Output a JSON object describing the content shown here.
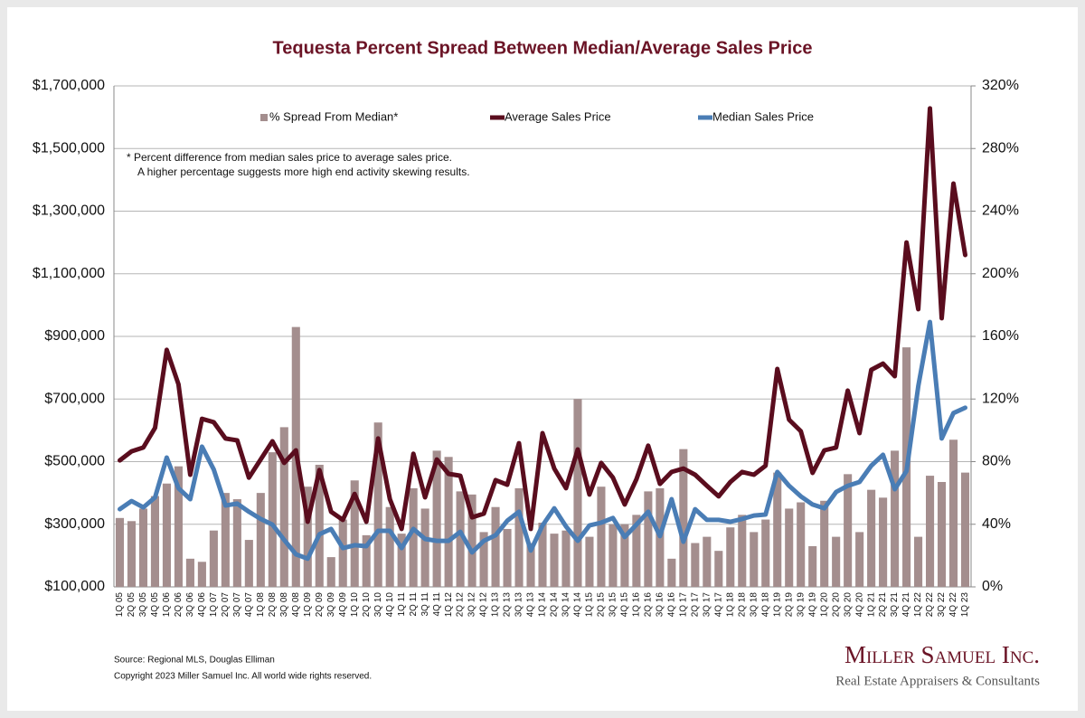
{
  "chart_data": {
    "type": "bar-line",
    "title": "Tequesta Percent Spread Between Median/Average Sales Price",
    "categories": [
      "1Q 05",
      "2Q 05",
      "3Q 05",
      "4Q 05",
      "1Q 06",
      "2Q 06",
      "3Q 06",
      "4Q 06",
      "1Q 07",
      "2Q 07",
      "3Q 07",
      "4Q 07",
      "1Q 08",
      "2Q 08",
      "3Q 08",
      "4Q 08",
      "1Q 09",
      "2Q 09",
      "3Q 09",
      "4Q 09",
      "1Q 10",
      "2Q 10",
      "3Q 10",
      "4Q 10",
      "1Q 11",
      "2Q 11",
      "3Q 11",
      "4Q 11",
      "1Q 12",
      "2Q 12",
      "3Q 12",
      "4Q 12",
      "1Q 13",
      "2Q 13",
      "3Q 13",
      "4Q 13",
      "1Q 14",
      "2Q 14",
      "3Q 14",
      "4Q 14",
      "1Q 15",
      "2Q 15",
      "3Q 15",
      "4Q 15",
      "1Q 16",
      "2Q 16",
      "3Q 16",
      "4Q 16",
      "1Q 17",
      "2Q 17",
      "3Q 17",
      "4Q 17",
      "1Q 18",
      "2Q 18",
      "3Q 18",
      "4Q 18",
      "1Q 19",
      "2Q 19",
      "3Q 19",
      "4Q 19",
      "1Q 20",
      "2Q 20",
      "3Q 20",
      "4Q 20",
      "1Q 21",
      "2Q 21",
      "3Q 21",
      "4Q 21",
      "1Q 22",
      "2Q 22",
      "3Q 22",
      "4Q 22",
      "1Q 23"
    ],
    "series": [
      {
        "name": "% Spread From Median*",
        "kind": "bar",
        "axis": "y2",
        "color": "#a48e8e",
        "values": [
          44,
          42,
          50,
          58,
          66,
          77,
          18,
          16,
          36,
          60,
          56,
          30,
          60,
          86,
          102,
          166,
          64,
          78,
          19,
          43,
          68,
          33,
          105,
          51,
          34,
          63,
          50,
          87,
          83,
          61,
          59,
          35,
          51,
          37,
          63,
          28,
          41,
          34,
          36,
          120,
          32,
          64,
          40,
          40,
          46,
          61,
          63,
          18,
          88,
          28,
          32,
          23,
          38,
          46,
          35,
          43,
          73,
          50,
          54,
          26,
          55,
          32,
          72,
          35,
          62,
          57,
          87,
          153,
          32,
          71,
          67,
          94,
          73
        ]
      },
      {
        "name": "Average Sales Price",
        "kind": "line",
        "color": "#5a0d1e",
        "values": [
          504000,
          533000,
          545000,
          608000,
          857000,
          747000,
          458000,
          637000,
          626000,
          574000,
          568000,
          449000,
          507000,
          565000,
          496000,
          536000,
          308000,
          473000,
          340000,
          314000,
          397000,
          308000,
          574000,
          380000,
          285000,
          525000,
          386000,
          507000,
          461000,
          455000,
          322000,
          334000,
          441000,
          426000,
          559000,
          285000,
          591000,
          478000,
          415000,
          539000,
          395000,
          496000,
          449000,
          363000,
          444000,
          551000,
          429000,
          467000,
          478000,
          458000,
          423000,
          389000,
          435000,
          467000,
          458000,
          487000,
          796000,
          634000,
          597000,
          464000,
          536000,
          545000,
          727000,
          591000,
          793000,
          813000,
          773000,
          1200000,
          987000,
          1628000,
          958000,
          1388000,
          1160000
        ]
      },
      {
        "name": "Median Sales Price",
        "kind": "line",
        "color": "#4a7db5",
        "values": [
          348000,
          374000,
          354000,
          386000,
          513000,
          415000,
          380000,
          548000,
          475000,
          360000,
          366000,
          340000,
          317000,
          299000,
          250000,
          204000,
          190000,
          268000,
          285000,
          224000,
          233000,
          230000,
          279000,
          279000,
          224000,
          285000,
          253000,
          247000,
          247000,
          276000,
          210000,
          247000,
          265000,
          311000,
          340000,
          216000,
          296000,
          351000,
          293000,
          247000,
          296000,
          305000,
          320000,
          259000,
          299000,
          340000,
          262000,
          380000,
          244000,
          348000,
          314000,
          314000,
          308000,
          317000,
          328000,
          331000,
          467000,
          423000,
          389000,
          363000,
          351000,
          403000,
          423000,
          435000,
          487000,
          522000,
          412000,
          470000,
          741000,
          946000,
          574000,
          655000,
          672000
        ]
      }
    ],
    "ylim": [
      100000,
      1700000
    ],
    "yticks": [
      {
        "value": 100000,
        "label": "$100,000"
      },
      {
        "value": 300000,
        "label": "$300,000"
      },
      {
        "value": 500000,
        "label": "$500,000"
      },
      {
        "value": 700000,
        "label": "$700,000"
      },
      {
        "value": 900000,
        "label": "$900,000"
      },
      {
        "value": 1100000,
        "label": "$1,100,000"
      },
      {
        "value": 1300000,
        "label": "$1,300,000"
      },
      {
        "value": 1500000,
        "label": "$1,500,000"
      },
      {
        "value": 1700000,
        "label": "$1,700,000"
      }
    ],
    "y2lim": [
      0,
      320
    ],
    "y2ticks": [
      {
        "value": 0,
        "label": "0%"
      },
      {
        "value": 40,
        "label": "40%"
      },
      {
        "value": 80,
        "label": "80%"
      },
      {
        "value": 120,
        "label": "120%"
      },
      {
        "value": 160,
        "label": "160%"
      },
      {
        "value": 200,
        "label": "200%"
      },
      {
        "value": 240,
        "label": "240%"
      },
      {
        "value": 280,
        "label": "280%"
      },
      {
        "value": 320,
        "label": "320%"
      }
    ],
    "grid": true,
    "legend": "top",
    "annotations": [
      "*  Percent difference from median sales price to average sales price.",
      "A higher percentage suggests more high end activity skewing results."
    ],
    "source": "Source: Regional MLS, Douglas Elliman",
    "copyright": "Copyright 2023 Miller Samuel Inc.  All world wide rights reserved.",
    "logo": "Miller Samuel Inc.",
    "logo_subtitle": "Real Estate Appraisers & Consultants"
  }
}
